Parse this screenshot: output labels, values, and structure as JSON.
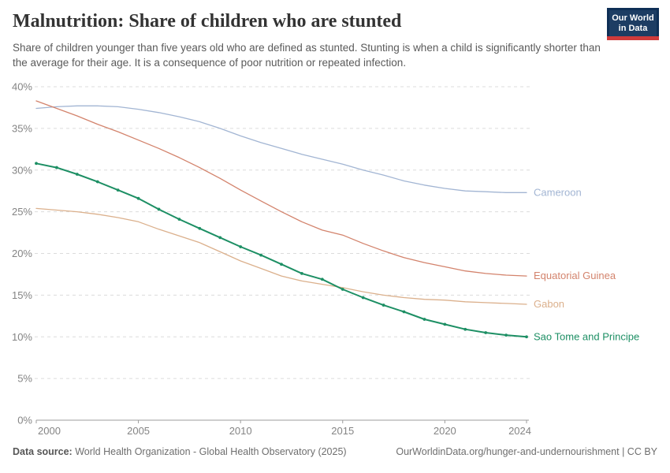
{
  "header": {
    "title": "Malnutrition: Share of children who are stunted",
    "subtitle": "Share of children younger than five years old who are defined as stunted. Stunting is when a child is significantly shorter than the average for their age. It is a consequence of poor nutrition or repeated infection.",
    "logo": {
      "line1": "Our World",
      "line2": "in Data"
    }
  },
  "footer": {
    "datasource_label": "Data source:",
    "datasource_text": " World Health Organization - Global Health Observatory (2025)",
    "attribution": "OurWorldinData.org/hunger-and-undernourishment | CC BY"
  },
  "chart_data": {
    "type": "line",
    "title": "Malnutrition: Share of children who are stunted",
    "xlabel": "",
    "ylabel": "",
    "xlim": [
      2000,
      2024
    ],
    "ylim": [
      0,
      40
    ],
    "grid": true,
    "legend_position": "right-of-line-end",
    "x": [
      2000,
      2001,
      2002,
      2003,
      2004,
      2005,
      2006,
      2007,
      2008,
      2009,
      2010,
      2011,
      2012,
      2013,
      2014,
      2015,
      2016,
      2017,
      2018,
      2019,
      2020,
      2021,
      2022,
      2023,
      2024
    ],
    "x_tick_values": [
      2000,
      2005,
      2010,
      2015,
      2020,
      2024
    ],
    "x_tick_labels": [
      "2000",
      "2005",
      "2010",
      "2015",
      "2020",
      "2024"
    ],
    "y_tick_values": [
      0,
      5,
      10,
      15,
      20,
      25,
      30,
      35,
      40
    ],
    "y_tick_labels": [
      "0%",
      "5%",
      "10%",
      "15%",
      "20%",
      "25%",
      "30%",
      "35%",
      "40%"
    ],
    "series": [
      {
        "name": "Cameroon",
        "color": "#a2b5d3",
        "markers": false,
        "line_width": 1.3,
        "values": [
          37.4,
          37.6,
          37.7,
          37.7,
          37.6,
          37.3,
          36.9,
          36.4,
          35.8,
          35.0,
          34.1,
          33.3,
          32.6,
          31.9,
          31.3,
          30.7,
          30.0,
          29.4,
          28.7,
          28.2,
          27.8,
          27.5,
          27.4,
          27.3,
          27.3
        ]
      },
      {
        "name": "Equatorial Guinea",
        "color": "#d3836c",
        "markers": false,
        "line_width": 1.3,
        "values": [
          38.3,
          37.4,
          36.5,
          35.5,
          34.6,
          33.6,
          32.6,
          31.5,
          30.3,
          29.0,
          27.6,
          26.3,
          25.0,
          23.8,
          22.8,
          22.2,
          21.2,
          20.3,
          19.5,
          18.9,
          18.4,
          17.9,
          17.6,
          17.4,
          17.3
        ]
      },
      {
        "name": "Gabon",
        "color": "#dbb08c",
        "markers": false,
        "line_width": 1.3,
        "values": [
          25.4,
          25.2,
          25.0,
          24.7,
          24.3,
          23.8,
          22.9,
          22.1,
          21.3,
          20.2,
          19.1,
          18.2,
          17.3,
          16.7,
          16.3,
          15.9,
          15.4,
          15.0,
          14.7,
          14.5,
          14.4,
          14.2,
          14.1,
          14.0,
          13.9
        ]
      },
      {
        "name": "Sao Tome and Principe",
        "color": "#1d8f64",
        "markers": true,
        "line_width": 2,
        "values": [
          30.8,
          30.3,
          29.5,
          28.6,
          27.6,
          26.6,
          25.3,
          24.1,
          23.0,
          21.9,
          20.8,
          19.8,
          18.7,
          17.6,
          16.9,
          15.7,
          14.7,
          13.8,
          13.0,
          12.1,
          11.5,
          10.9,
          10.5,
          10.2,
          10.0
        ]
      }
    ],
    "colors": {
      "gridline": "#dcdcdc",
      "axis": "#9c9c9c",
      "tick_text": "#848484",
      "logo_bg": "#1d3d63",
      "logo_frame": "#0e2f56",
      "logo_stripe": "#cf3b3b"
    }
  }
}
